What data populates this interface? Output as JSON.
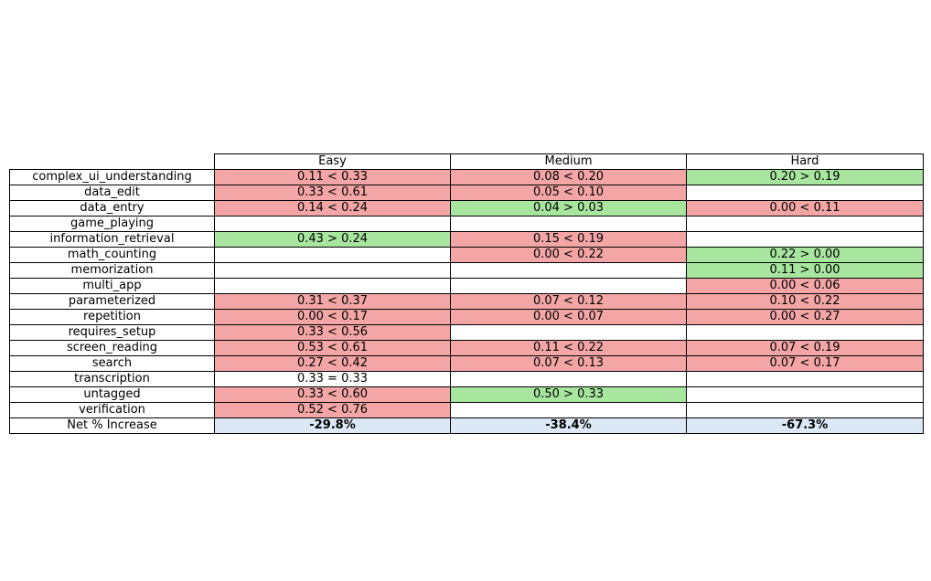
{
  "colors": {
    "worse": "#f4a6a6",
    "better": "#a8e6a0",
    "equal": "#ffffff",
    "empty": "#ffffff",
    "total": "#dce8f6",
    "label": "#ffffff",
    "border": "#000000"
  },
  "chart_data": {
    "type": "table",
    "columns": [
      "Easy",
      "Medium",
      "Hard"
    ],
    "rows": [
      {
        "label": "complex_ui_understanding",
        "cells": [
          {
            "text": "0.11 < 0.33",
            "status": "worse"
          },
          {
            "text": "0.08 < 0.20",
            "status": "worse"
          },
          {
            "text": "0.20 > 0.19",
            "status": "better"
          }
        ]
      },
      {
        "label": "data_edit",
        "cells": [
          {
            "text": "0.33 < 0.61",
            "status": "worse"
          },
          {
            "text": "0.05 < 0.10",
            "status": "worse"
          },
          {
            "text": "",
            "status": "empty"
          }
        ]
      },
      {
        "label": "data_entry",
        "cells": [
          {
            "text": "0.14 < 0.24",
            "status": "worse"
          },
          {
            "text": "0.04 > 0.03",
            "status": "better"
          },
          {
            "text": "0.00 < 0.11",
            "status": "worse"
          }
        ]
      },
      {
        "label": "game_playing",
        "cells": [
          {
            "text": "",
            "status": "empty"
          },
          {
            "text": "",
            "status": "empty"
          },
          {
            "text": "",
            "status": "empty"
          }
        ]
      },
      {
        "label": "information_retrieval",
        "cells": [
          {
            "text": "0.43 > 0.24",
            "status": "better"
          },
          {
            "text": "0.15 < 0.19",
            "status": "worse"
          },
          {
            "text": "",
            "status": "empty"
          }
        ]
      },
      {
        "label": "math_counting",
        "cells": [
          {
            "text": "",
            "status": "empty"
          },
          {
            "text": "0.00 < 0.22",
            "status": "worse"
          },
          {
            "text": "0.22 > 0.00",
            "status": "better"
          }
        ]
      },
      {
        "label": "memorization",
        "cells": [
          {
            "text": "",
            "status": "empty"
          },
          {
            "text": "",
            "status": "empty"
          },
          {
            "text": "0.11 > 0.00",
            "status": "better"
          }
        ]
      },
      {
        "label": "multi_app",
        "cells": [
          {
            "text": "",
            "status": "empty"
          },
          {
            "text": "",
            "status": "empty"
          },
          {
            "text": "0.00 < 0.06",
            "status": "worse"
          }
        ]
      },
      {
        "label": "parameterized",
        "cells": [
          {
            "text": "0.31 < 0.37",
            "status": "worse"
          },
          {
            "text": "0.07 < 0.12",
            "status": "worse"
          },
          {
            "text": "0.10 < 0.22",
            "status": "worse"
          }
        ]
      },
      {
        "label": "repetition",
        "cells": [
          {
            "text": "0.00 < 0.17",
            "status": "worse"
          },
          {
            "text": "0.00 < 0.07",
            "status": "worse"
          },
          {
            "text": "0.00 < 0.27",
            "status": "worse"
          }
        ]
      },
      {
        "label": "requires_setup",
        "cells": [
          {
            "text": "0.33 < 0.56",
            "status": "worse"
          },
          {
            "text": "",
            "status": "empty"
          },
          {
            "text": "",
            "status": "empty"
          }
        ]
      },
      {
        "label": "screen_reading",
        "cells": [
          {
            "text": "0.53 < 0.61",
            "status": "worse"
          },
          {
            "text": "0.11 < 0.22",
            "status": "worse"
          },
          {
            "text": "0.07 < 0.19",
            "status": "worse"
          }
        ]
      },
      {
        "label": "search",
        "cells": [
          {
            "text": "0.27 < 0.42",
            "status": "worse"
          },
          {
            "text": "0.07 < 0.13",
            "status": "worse"
          },
          {
            "text": "0.07 < 0.17",
            "status": "worse"
          }
        ]
      },
      {
        "label": "transcription",
        "cells": [
          {
            "text": "0.33 = 0.33",
            "status": "equal"
          },
          {
            "text": "",
            "status": "empty"
          },
          {
            "text": "",
            "status": "empty"
          }
        ]
      },
      {
        "label": "untagged",
        "cells": [
          {
            "text": "0.33 < 0.60",
            "status": "worse"
          },
          {
            "text": "0.50 > 0.33",
            "status": "better"
          },
          {
            "text": "",
            "status": "empty"
          }
        ]
      },
      {
        "label": "verification",
        "cells": [
          {
            "text": "0.52 < 0.76",
            "status": "worse"
          },
          {
            "text": "",
            "status": "empty"
          },
          {
            "text": "",
            "status": "empty"
          }
        ]
      }
    ],
    "totals": {
      "label": "Net % Increase",
      "values": [
        "-29.8%",
        "-38.4%",
        "-67.3%"
      ]
    }
  }
}
